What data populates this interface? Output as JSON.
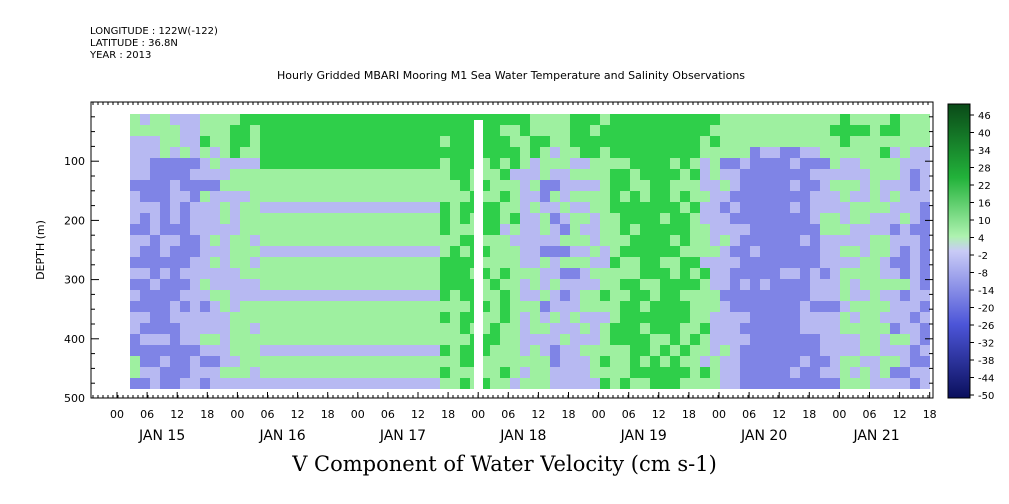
{
  "header": {
    "longitude": "LONGITUDE : 122W(-122)",
    "latitude": "LATITUDE : 36.8N",
    "year": "YEAR : 2013",
    "title": "Hourly Gridded MBARI Mooring M1 Sea Water Temperature and Salinity Observations"
  },
  "footer": {
    "variable_title": "V Component of Water Velocity (cm s-1)"
  },
  "chart_data": {
    "type": "heatmap",
    "title": "Hourly Gridded MBARI Mooring M1 Sea Water Temperature and Salinity Observations",
    "xlabel": "",
    "ylabel": "DEPTH (m)",
    "ylim": [
      500,
      0
    ],
    "y_ticks": [
      100,
      200,
      300,
      400,
      500
    ],
    "x_hours": [
      "00",
      "06",
      "12",
      "18",
      "00",
      "06",
      "12",
      "18",
      "00",
      "06",
      "12",
      "18",
      "00",
      "06",
      "12",
      "18",
      "00",
      "06",
      "12",
      "18",
      "00",
      "06",
      "12",
      "18",
      "00",
      "06",
      "12",
      "18"
    ],
    "x_days": [
      "JAN 15",
      "JAN 16",
      "JAN 17",
      "JAN 18",
      "JAN 19",
      "JAN 20",
      "JAN 21"
    ],
    "colorbar_labels": [
      "46",
      "40",
      "34",
      "28",
      "22",
      "16",
      "10",
      "4",
      "-2",
      "-8",
      "-14",
      "-20",
      "-26",
      "-32",
      "-38",
      "-44",
      "-50"
    ],
    "colors": {
      "strong_pos": "#0a5a1e",
      "mid_pos": "#2fcf4a",
      "weak_pos": "#9ef0a0",
      "weak_neg": "#b7b9f2",
      "mid_neg": "#7f84e6",
      "strong_neg": "#1b1f7a"
    }
  }
}
